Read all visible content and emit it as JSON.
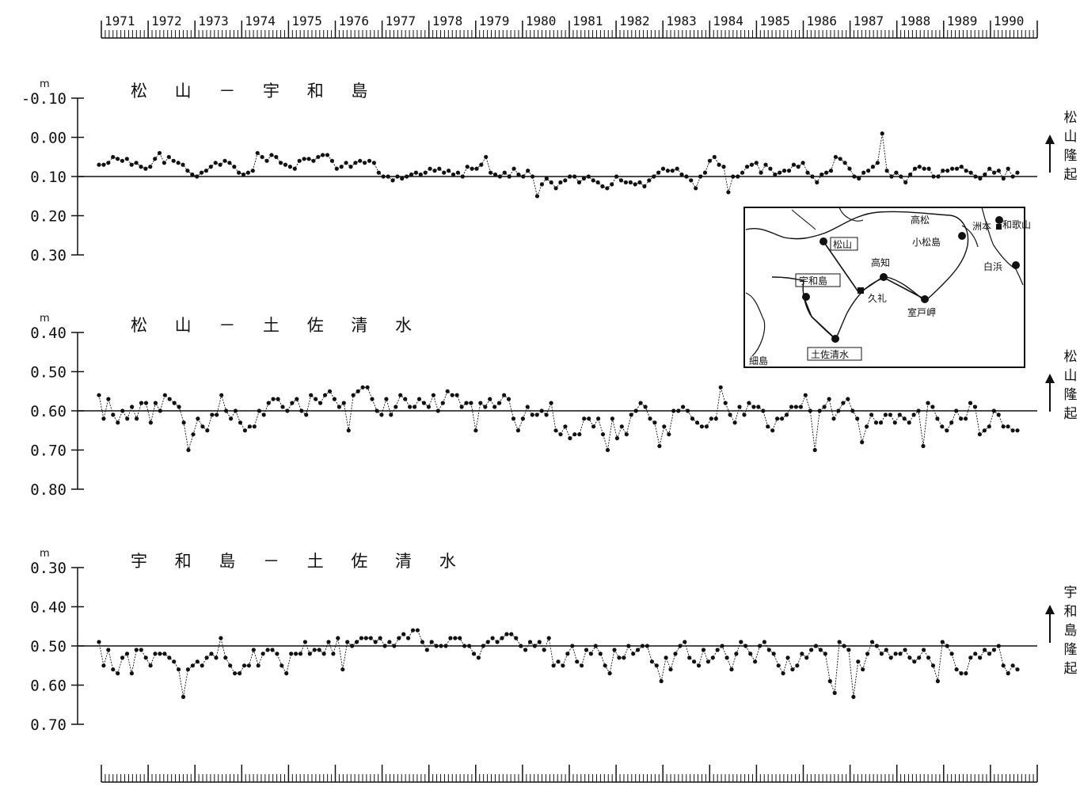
{
  "chart_data": {
    "type": "line",
    "x_axis": {
      "years": [
        "1971",
        "1972",
        "1973",
        "1974",
        "1975",
        "1976",
        "1977",
        "1978",
        "1979",
        "1980",
        "1981",
        "1982",
        "1983",
        "1984",
        "1985",
        "1986",
        "1987",
        "1988",
        "1989",
        "1990"
      ],
      "start_year": 1971,
      "end_year": 1991
    },
    "panels": [
      {
        "title": "松 山 － 宇 和 島",
        "unit": "m",
        "y_ticks": [
          "-0.10",
          "0.00",
          "0.10",
          "0.20",
          "0.30"
        ],
        "ylim": [
          -0.1,
          0.3
        ],
        "reference_value": 0.1,
        "side_label": "松山隆起",
        "side_glyph": "↑",
        "values": [
          0.07,
          0.07,
          0.065,
          0.05,
          0.055,
          0.06,
          0.055,
          0.07,
          0.065,
          0.075,
          0.08,
          0.075,
          0.055,
          0.04,
          0.065,
          0.05,
          0.06,
          0.065,
          0.07,
          0.085,
          0.095,
          0.1,
          0.09,
          0.085,
          0.075,
          0.065,
          0.07,
          0.06,
          0.065,
          0.075,
          0.09,
          0.095,
          0.09,
          0.085,
          0.04,
          0.05,
          0.06,
          0.045,
          0.05,
          0.065,
          0.07,
          0.075,
          0.08,
          0.06,
          0.055,
          0.055,
          0.06,
          0.05,
          0.045,
          0.045,
          0.06,
          0.08,
          0.075,
          0.065,
          0.075,
          0.065,
          0.06,
          0.065,
          0.06,
          0.065,
          0.09,
          0.1,
          0.1,
          0.11,
          0.1,
          0.105,
          0.1,
          0.095,
          0.09,
          0.095,
          0.09,
          0.08,
          0.085,
          0.08,
          0.09,
          0.085,
          0.095,
          0.09,
          0.1,
          0.075,
          0.08,
          0.08,
          0.07,
          0.05,
          0.09,
          0.095,
          0.1,
          0.09,
          0.1,
          0.08,
          0.095,
          0.1,
          0.085,
          0.1,
          0.15,
          0.12,
          0.105,
          0.115,
          0.13,
          0.115,
          0.11,
          0.1,
          0.1,
          0.115,
          0.105,
          0.1,
          0.11,
          0.115,
          0.125,
          0.13,
          0.12,
          0.1,
          0.11,
          0.115,
          0.115,
          0.12,
          0.115,
          0.125,
          0.11,
          0.1,
          0.09,
          0.08,
          0.085,
          0.085,
          0.08,
          0.095,
          0.1,
          0.11,
          0.13,
          0.1,
          0.09,
          0.06,
          0.05,
          0.07,
          0.075,
          0.14,
          0.1,
          0.1,
          0.09,
          0.075,
          0.07,
          0.065,
          0.09,
          0.07,
          0.08,
          0.095,
          0.09,
          0.085,
          0.085,
          0.07,
          0.075,
          0.065,
          0.09,
          0.1,
          0.115,
          0.095,
          0.09,
          0.085,
          0.05,
          0.055,
          0.065,
          0.08,
          0.1,
          0.105,
          0.09,
          0.085,
          0.075,
          0.065,
          -0.01,
          0.085,
          0.1,
          0.09,
          0.1,
          0.115,
          0.095,
          0.08,
          0.075,
          0.08,
          0.08,
          0.1,
          0.1,
          0.085,
          0.085,
          0.08,
          0.08,
          0.075,
          0.085,
          0.09,
          0.1,
          0.105,
          0.095,
          0.08,
          0.09,
          0.085,
          0.105,
          0.08,
          0.1,
          0.09
        ]
      },
      {
        "title": "松 山 － 土 佐 清 水",
        "unit": "m",
        "y_ticks": [
          "0.40",
          "0.50",
          "0.60",
          "0.70",
          "0.80"
        ],
        "ylim": [
          0.4,
          0.8
        ],
        "reference_value": 0.6,
        "side_label": "松山隆起",
        "side_glyph": "↑",
        "values": [
          0.56,
          0.62,
          0.57,
          0.61,
          0.63,
          0.6,
          0.62,
          0.59,
          0.62,
          0.58,
          0.58,
          0.63,
          0.58,
          0.6,
          0.56,
          0.57,
          0.58,
          0.59,
          0.63,
          0.7,
          0.66,
          0.62,
          0.64,
          0.65,
          0.61,
          0.61,
          0.56,
          0.6,
          0.62,
          0.6,
          0.63,
          0.65,
          0.64,
          0.64,
          0.6,
          0.61,
          0.58,
          0.57,
          0.57,
          0.59,
          0.6,
          0.58,
          0.57,
          0.6,
          0.61,
          0.56,
          0.57,
          0.58,
          0.56,
          0.55,
          0.57,
          0.59,
          0.58,
          0.65,
          0.56,
          0.55,
          0.54,
          0.54,
          0.57,
          0.6,
          0.61,
          0.57,
          0.61,
          0.59,
          0.56,
          0.57,
          0.59,
          0.59,
          0.57,
          0.58,
          0.59,
          0.56,
          0.6,
          0.58,
          0.55,
          0.56,
          0.56,
          0.59,
          0.58,
          0.58,
          0.65,
          0.58,
          0.59,
          0.57,
          0.59,
          0.58,
          0.56,
          0.57,
          0.62,
          0.65,
          0.62,
          0.59,
          0.61,
          0.61,
          0.6,
          0.61,
          0.58,
          0.65,
          0.66,
          0.64,
          0.67,
          0.66,
          0.66,
          0.62,
          0.62,
          0.64,
          0.62,
          0.66,
          0.7,
          0.62,
          0.67,
          0.64,
          0.66,
          0.61,
          0.6,
          0.58,
          0.59,
          0.62,
          0.63,
          0.69,
          0.64,
          0.66,
          0.6,
          0.6,
          0.59,
          0.6,
          0.62,
          0.63,
          0.64,
          0.64,
          0.62,
          0.62,
          0.54,
          0.58,
          0.61,
          0.63,
          0.59,
          0.61,
          0.58,
          0.59,
          0.59,
          0.6,
          0.64,
          0.65,
          0.62,
          0.62,
          0.61,
          0.59,
          0.59,
          0.59,
          0.56,
          0.6,
          0.7,
          0.6,
          0.59,
          0.57,
          0.62,
          0.6,
          0.58,
          0.57,
          0.6,
          0.62,
          0.68,
          0.64,
          0.61,
          0.63,
          0.63,
          0.61,
          0.61,
          0.63,
          0.61,
          0.62,
          0.63,
          0.61,
          0.6,
          0.69,
          0.58,
          0.59,
          0.62,
          0.64,
          0.65,
          0.63,
          0.6,
          0.62,
          0.62,
          0.58,
          0.59,
          0.66,
          0.65,
          0.64,
          0.6,
          0.61,
          0.64,
          0.64,
          0.65,
          0.65
        ]
      },
      {
        "title": "宇 和 島 － 土 佐 清 水",
        "unit": "m",
        "y_ticks": [
          "0.30",
          "0.40",
          "0.50",
          "0.60",
          "0.70"
        ],
        "ylim": [
          0.3,
          0.7
        ],
        "reference_value": 0.5,
        "side_label": "宇和島隆起",
        "side_glyph": "↑",
        "values": [
          0.49,
          0.55,
          0.51,
          0.56,
          0.57,
          0.53,
          0.52,
          0.57,
          0.51,
          0.51,
          0.53,
          0.55,
          0.52,
          0.52,
          0.52,
          0.53,
          0.54,
          0.56,
          0.63,
          0.56,
          0.55,
          0.54,
          0.55,
          0.53,
          0.52,
          0.53,
          0.48,
          0.53,
          0.55,
          0.57,
          0.57,
          0.55,
          0.55,
          0.51,
          0.55,
          0.52,
          0.51,
          0.51,
          0.52,
          0.55,
          0.57,
          0.52,
          0.52,
          0.52,
          0.49,
          0.52,
          0.51,
          0.51,
          0.52,
          0.49,
          0.52,
          0.48,
          0.56,
          0.49,
          0.5,
          0.49,
          0.48,
          0.48,
          0.48,
          0.49,
          0.48,
          0.5,
          0.49,
          0.5,
          0.48,
          0.47,
          0.48,
          0.46,
          0.46,
          0.49,
          0.51,
          0.49,
          0.5,
          0.5,
          0.5,
          0.48,
          0.48,
          0.48,
          0.5,
          0.5,
          0.52,
          0.53,
          0.5,
          0.49,
          0.48,
          0.49,
          0.48,
          0.47,
          0.47,
          0.48,
          0.5,
          0.51,
          0.49,
          0.5,
          0.49,
          0.51,
          0.48,
          0.55,
          0.54,
          0.55,
          0.52,
          0.5,
          0.54,
          0.55,
          0.51,
          0.52,
          0.5,
          0.52,
          0.55,
          0.57,
          0.51,
          0.53,
          0.53,
          0.5,
          0.52,
          0.51,
          0.5,
          0.5,
          0.54,
          0.55,
          0.59,
          0.53,
          0.56,
          0.52,
          0.5,
          0.49,
          0.53,
          0.54,
          0.55,
          0.51,
          0.54,
          0.53,
          0.51,
          0.5,
          0.53,
          0.56,
          0.52,
          0.49,
          0.5,
          0.52,
          0.54,
          0.5,
          0.49,
          0.51,
          0.52,
          0.55,
          0.57,
          0.53,
          0.56,
          0.55,
          0.52,
          0.53,
          0.51,
          0.5,
          0.51,
          0.52,
          0.59,
          0.62,
          0.49,
          0.5,
          0.51,
          0.63,
          0.54,
          0.56,
          0.52,
          0.49,
          0.5,
          0.52,
          0.51,
          0.53,
          0.52,
          0.52,
          0.51,
          0.53,
          0.54,
          0.53,
          0.51,
          0.53,
          0.55,
          0.59,
          0.49,
          0.5,
          0.52,
          0.56,
          0.57,
          0.57,
          0.53,
          0.52,
          0.53,
          0.51,
          0.52,
          0.51,
          0.5,
          0.55,
          0.57,
          0.55,
          0.56
        ]
      }
    ]
  },
  "map": {
    "labels": [
      "高松",
      "小松島",
      "洲本",
      "和歌山",
      "松山",
      "高知",
      "宇和島",
      "久礼",
      "室戸岬",
      "白浜",
      "土佐清水",
      "細島"
    ],
    "boxed_labels": [
      "松山",
      "宇和島",
      "土佐清水"
    ]
  },
  "colors": {
    "ink": "#111111",
    "background": "#ffffff"
  }
}
